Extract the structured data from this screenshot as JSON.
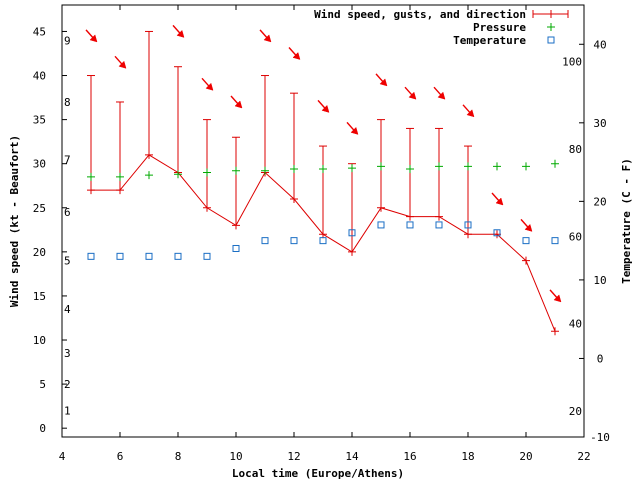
{
  "chart_data": {
    "type": "line",
    "xlabel": "Local time (Europe/Athens)",
    "ylabel": "Wind speed (kt - Beaufort)",
    "y2label": "Temperature (C - F)",
    "xlim": [
      4,
      22
    ],
    "ylim": [
      -1,
      48
    ],
    "y2lim": [
      -10,
      45
    ],
    "x_ticks": [
      "4",
      "6",
      "8",
      "10",
      "12",
      "14",
      "16",
      "18",
      "20",
      "22"
    ],
    "y_ticks": [
      "0",
      "5",
      "10",
      "15",
      "20",
      "25",
      "30",
      "35",
      "40",
      "45"
    ],
    "y2_ticks_c": [
      "-10",
      "0",
      "10",
      "20",
      "30",
      "40"
    ],
    "beaufort_labels": [
      "1",
      "2",
      "3",
      "4",
      "5",
      "6",
      "7",
      "8",
      "9"
    ],
    "fahrenheit_labels": [
      "20",
      "40",
      "60",
      "80",
      "100"
    ],
    "legend": {
      "wind": "Wind speed, gusts, and direction",
      "pressure": "Pressure",
      "temperature": "Temperature"
    },
    "colors": {
      "wind": "#dd0000",
      "pressure": "#00aa00",
      "temperature": "#1a6ec4",
      "arrow": "#ee0000"
    },
    "series": [
      {
        "name": "Wind speed, gusts, and direction",
        "x": [
          5,
          6,
          7,
          8,
          9,
          10,
          11,
          12,
          13,
          14,
          15,
          16,
          17,
          18,
          19,
          20,
          21
        ],
        "speed": [
          27,
          27,
          31,
          29,
          25,
          23,
          29,
          26,
          22,
          20,
          25,
          24,
          24,
          22,
          22,
          19,
          11
        ],
        "gust": [
          40,
          37,
          45,
          41,
          35,
          33,
          40,
          38,
          32,
          30,
          35,
          34,
          34,
          32,
          22,
          19,
          11
        ]
      },
      {
        "name": "Pressure",
        "x": [
          5,
          6,
          7,
          8,
          9,
          10,
          11,
          12,
          13,
          14,
          15,
          16,
          17,
          18,
          19,
          20,
          21
        ],
        "y": [
          28.5,
          28.5,
          28.7,
          28.8,
          29,
          29.2,
          29.2,
          29.4,
          29.4,
          29.5,
          29.7,
          29.4,
          29.7,
          29.7,
          29.7,
          29.7,
          30
        ]
      },
      {
        "name": "Temperature",
        "x": [
          5,
          6,
          7,
          8,
          9,
          10,
          11,
          12,
          13,
          14,
          15,
          16,
          17,
          18,
          19,
          20,
          21
        ],
        "y_c": [
          13,
          13,
          13,
          13,
          13,
          14,
          15,
          15,
          15,
          16,
          17,
          17,
          17,
          17,
          16,
          15,
          15
        ]
      },
      {
        "name": "Wind direction arrows",
        "x": [
          5,
          6,
          7,
          8,
          9,
          10,
          11,
          12,
          13,
          14,
          15,
          16,
          17,
          18,
          19,
          20,
          21
        ],
        "y": [
          44.5,
          41.5,
          50,
          45,
          39,
          37,
          44.5,
          42.5,
          36.5,
          34,
          39.5,
          38,
          38,
          36,
          26,
          23,
          15
        ]
      }
    ]
  }
}
